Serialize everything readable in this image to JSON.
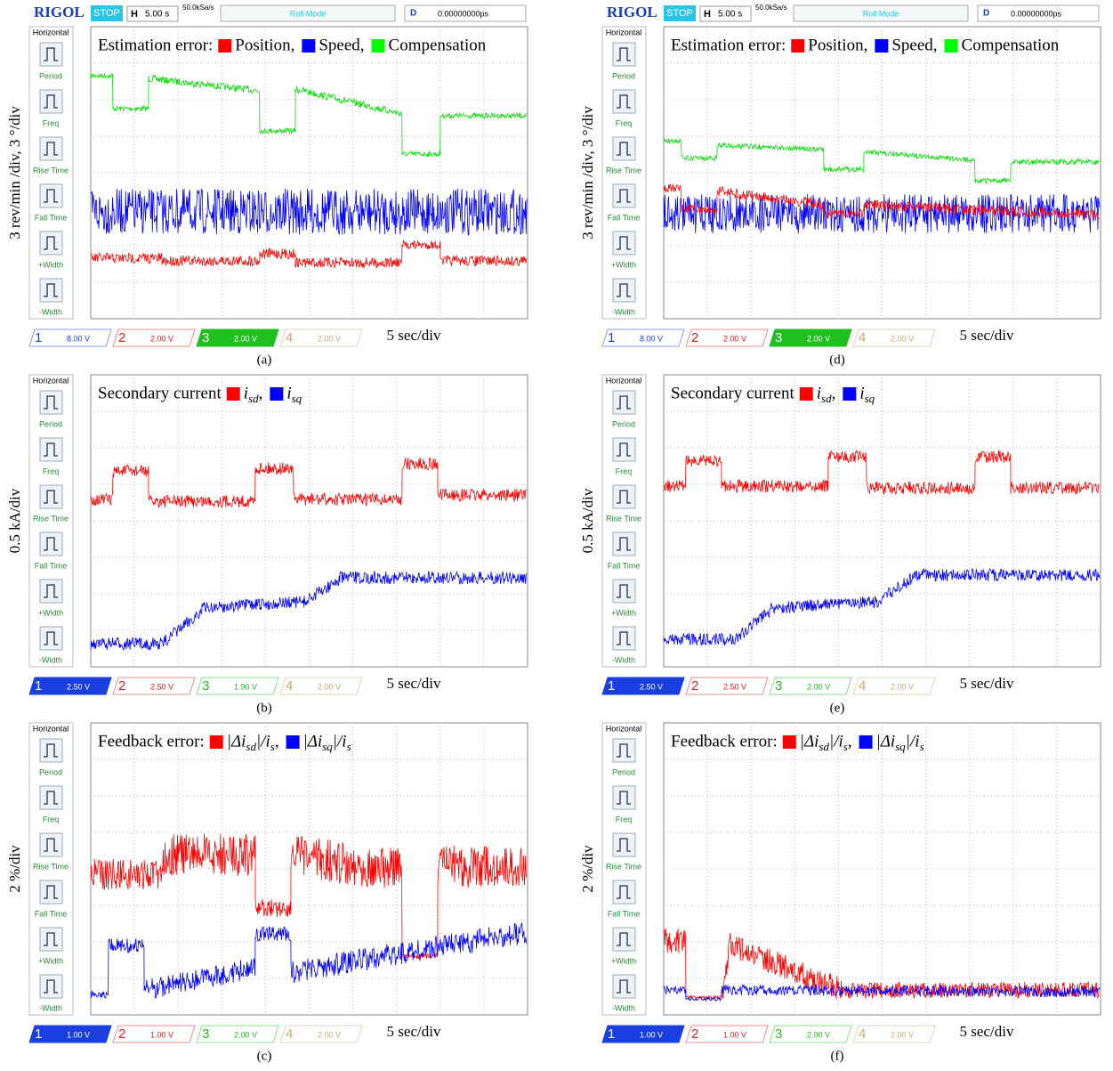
{
  "menu": {
    "title": "Horizontal",
    "items": [
      "Period",
      "Freq",
      "Rise Time",
      "Fall Time",
      "+Width",
      "-Width"
    ]
  },
  "header": {
    "brand": "RIGOL",
    "status": "STOP",
    "h": "H",
    "timebase": "5.00 s",
    "rate": "50.0kSa/s",
    "mode": "Roll Mode",
    "d": "D",
    "delay": "0.00000000ps"
  },
  "panels": [
    {
      "caption": "(a)",
      "ylabel": "3 rev/min /div, 3 °/div",
      "timescale": "5 sec/div",
      "legend": {
        "prefix": "Estimation error:",
        "items": [
          {
            "color": "#ff0000",
            "parts": [
              {
                "text": "Position,"
              }
            ]
          },
          {
            "color": "#0000ff",
            "parts": [
              {
                "text": "Speed,"
              }
            ]
          },
          {
            "color": "#00ff00",
            "parts": [
              {
                "text": "Compensation"
              }
            ]
          }
        ]
      },
      "channels": [
        {
          "label": "1",
          "volts": "8.00 V"
        },
        {
          "label": "2",
          "volts": "2.00 V"
        },
        {
          "label": "3",
          "volts": "2.00 V"
        },
        {
          "label": "4",
          "volts": "2.00 V"
        }
      ]
    },
    {
      "caption": "(b)",
      "ylabel": "0.5 kA/div",
      "timescale": "5 sec/div",
      "legend": {
        "prefix": "Secondary current",
        "items": [
          {
            "color": "#ff0000",
            "parts": [
              {
                "text": "i",
                "sub": "sd"
              },
              {
                "text": ","
              }
            ]
          },
          {
            "color": "#0000ff",
            "parts": [
              {
                "text": "i",
                "sub": "sq"
              }
            ]
          }
        ]
      },
      "channels": [
        {
          "label": "1",
          "volts": "2.50 V"
        },
        {
          "label": "2",
          "volts": "2.50 V"
        },
        {
          "label": "3",
          "volts": "1.90 V"
        },
        {
          "label": "4",
          "volts": "2.00 V"
        }
      ]
    },
    {
      "caption": "(c)",
      "ylabel": "2 %/div",
      "timescale": "5 sec/div",
      "legend": {
        "prefix": "Feedback error:",
        "items": [
          {
            "color": "#ff0000",
            "parts": [
              {
                "text": "|Δi",
                "sub": "sd"
              },
              {
                "text": "|/i",
                "sub": "s"
              },
              {
                "text": ","
              }
            ]
          },
          {
            "color": "#0000ff",
            "parts": [
              {
                "text": "|Δi",
                "sub": "sq"
              },
              {
                "text": "|/i",
                "sub": "s"
              }
            ]
          }
        ]
      },
      "channels": [
        {
          "label": "1",
          "volts": "1.00 V"
        },
        {
          "label": "2",
          "volts": "1.00 V"
        },
        {
          "label": "3",
          "volts": "2.00 V"
        },
        {
          "label": "4",
          "volts": "2.00 V"
        }
      ]
    },
    {
      "caption": "(d)",
      "ylabel": "3 rev/min /div, 3 °/div",
      "timescale": "5 sec/div",
      "legend": {
        "prefix": "Estimation error:",
        "items": [
          {
            "color": "#ff0000",
            "parts": [
              {
                "text": "Position,"
              }
            ]
          },
          {
            "color": "#0000ff",
            "parts": [
              {
                "text": "Speed,"
              }
            ]
          },
          {
            "color": "#00ff00",
            "parts": [
              {
                "text": "Compensation"
              }
            ]
          }
        ]
      },
      "channels": [
        {
          "label": "1",
          "volts": "8.00 V"
        },
        {
          "label": "2",
          "volts": "2.00 V"
        },
        {
          "label": "3",
          "volts": "2.00 V"
        },
        {
          "label": "4",
          "volts": "2.00 V"
        }
      ]
    },
    {
      "caption": "(e)",
      "ylabel": "0.5 kA/div",
      "timescale": "5 sec/div",
      "legend": {
        "prefix": "Secondary current",
        "items": [
          {
            "color": "#ff0000",
            "parts": [
              {
                "text": "i",
                "sub": "sd"
              },
              {
                "text": ","
              }
            ]
          },
          {
            "color": "#0000ff",
            "parts": [
              {
                "text": "i",
                "sub": "sq"
              }
            ]
          }
        ]
      },
      "channels": [
        {
          "label": "1",
          "volts": "2.50 V"
        },
        {
          "label": "2",
          "volts": "2.50 V"
        },
        {
          "label": "3",
          "volts": "2.00 V"
        },
        {
          "label": "4",
          "volts": "2.00 V"
        }
      ]
    },
    {
      "caption": "(f)",
      "ylabel": "2 %/div",
      "timescale": "5 sec/div",
      "legend": {
        "prefix": "Feedback error:",
        "items": [
          {
            "color": "#ff0000",
            "parts": [
              {
                "text": "|Δi",
                "sub": "sd"
              },
              {
                "text": "|/i",
                "sub": "s"
              },
              {
                "text": ","
              }
            ]
          },
          {
            "color": "#0000ff",
            "parts": [
              {
                "text": "|Δi",
                "sub": "sq"
              },
              {
                "text": "|/i",
                "sub": "s"
              }
            ]
          }
        ]
      },
      "channels": [
        {
          "label": "1",
          "volts": "1.00 V"
        },
        {
          "label": "2",
          "volts": "1.00 V"
        },
        {
          "label": "3",
          "volts": "2.00 V"
        },
        {
          "label": "4",
          "volts": "2.00 V"
        }
      ]
    }
  ]
}
